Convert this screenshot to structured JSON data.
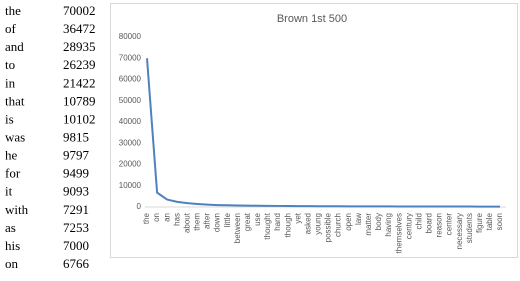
{
  "table": {
    "rows": [
      [
        "the",
        70002
      ],
      [
        "of",
        36472
      ],
      [
        "and",
        28935
      ],
      [
        "to",
        26239
      ],
      [
        "in",
        21422
      ],
      [
        "that",
        10789
      ],
      [
        "is",
        10102
      ],
      [
        "was",
        9815
      ],
      [
        "he",
        9797
      ],
      [
        "for",
        9499
      ],
      [
        "it",
        9093
      ],
      [
        "with",
        7291
      ],
      [
        "as",
        7253
      ],
      [
        "his",
        7000
      ],
      [
        "on",
        6766
      ]
    ]
  },
  "chart_data": {
    "type": "line",
    "title": "Brown 1st 500",
    "categories": [
      "the",
      "on",
      "an",
      "has",
      "about",
      "them",
      "after",
      "down",
      "little",
      "between",
      "great",
      "use",
      "thought",
      "hand",
      "though",
      "yet",
      "asked",
      "young",
      "possible",
      "church",
      "open",
      "law",
      "matter",
      "body",
      "having",
      "themselves",
      "century",
      "child",
      "board",
      "reason",
      "center",
      "necessary",
      "students",
      "figure",
      "table",
      "soon"
    ],
    "values": [
      70002,
      6766,
      3500,
      2400,
      1800,
      1400,
      1100,
      900,
      800,
      700,
      650,
      600,
      550,
      500,
      470,
      440,
      400,
      380,
      360,
      340,
      320,
      300,
      290,
      280,
      270,
      260,
      250,
      240,
      230,
      225,
      220,
      215,
      210,
      205,
      200,
      195
    ],
    "color": "#4f81bd",
    "ylim": [
      0,
      80000
    ],
    "yticks": [
      0,
      10000,
      20000,
      30000,
      40000,
      50000,
      60000,
      70000,
      80000
    ],
    "grid": false
  }
}
